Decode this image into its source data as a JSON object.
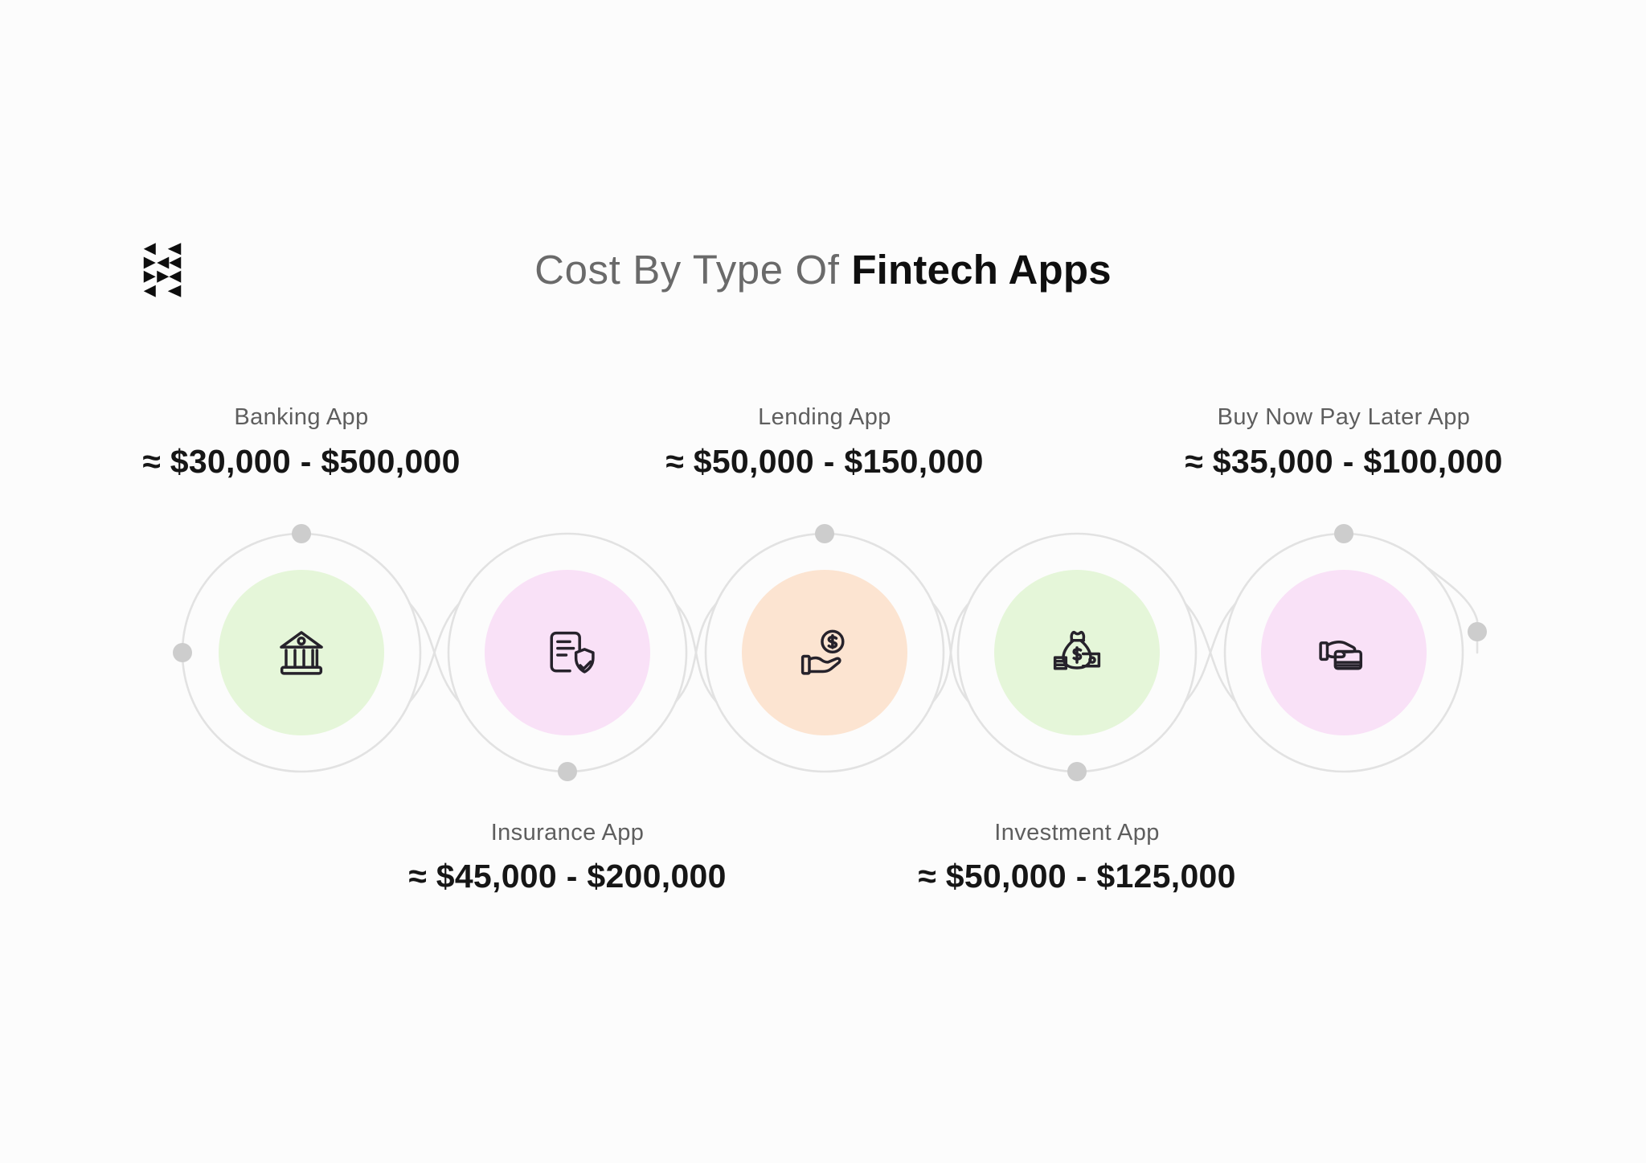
{
  "title": {
    "prefix": "Cost By Type Of ",
    "highlight": "Fintech Apps"
  },
  "logo": {
    "name": "triangle-k-brand-mark"
  },
  "nodes": [
    {
      "name": "Banking App",
      "price": "≈ $30,000 - $500,000",
      "icon": "bank-icon",
      "color": "#e5f6d9",
      "label_position": "top"
    },
    {
      "name": "Insurance App",
      "price": "≈ $45,000 - $200,000",
      "icon": "document-shield-icon",
      "color": "#f9e1f7",
      "label_position": "bottom"
    },
    {
      "name": "Lending App",
      "price": "≈ $50,000 - $150,000",
      "icon": "hand-coin-icon",
      "color": "#fce4d1",
      "label_position": "top"
    },
    {
      "name": "Investment App",
      "price": "≈ $50,000 - $125,000",
      "icon": "money-bag-icon",
      "color": "#e5f6d9",
      "label_position": "bottom"
    },
    {
      "name": "Buy Now Pay Later App",
      "price": "≈ $35,000 - $100,000",
      "icon": "hand-card-icon",
      "color": "#f9e1f7",
      "label_position": "top"
    }
  ],
  "chart_data": {
    "type": "table",
    "title": "Cost By Type Of Fintech Apps",
    "categories": [
      "Banking App",
      "Insurance App",
      "Lending App",
      "Investment App",
      "Buy Now Pay Later App"
    ],
    "cost_min_usd": [
      30000,
      45000,
      50000,
      50000,
      35000
    ],
    "cost_max_usd": [
      500000,
      200000,
      150000,
      125000,
      100000
    ]
  },
  "colors": {
    "background": "#fcfcfc",
    "ring": "#e2e2e2",
    "dot": "#cdcdcd",
    "title_gray": "#6a6a6a",
    "title_dark": "#0f0f0f",
    "label_gray": "#5e5e5e",
    "price_dark": "#161616",
    "icon_stroke": "#26222b"
  }
}
